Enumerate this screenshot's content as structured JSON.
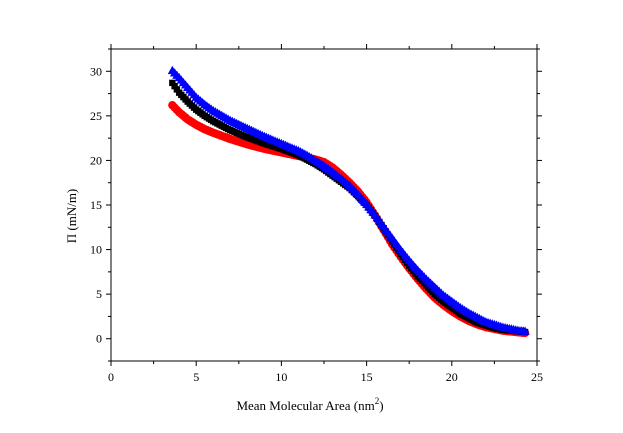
{
  "chart_data": {
    "type": "scatter",
    "xlabel": "Mean Molecular Area (nm",
    "xlabel_sup": "2",
    "xlabel_close": ")",
    "ylabel": "Π (mN/m)",
    "xlim": [
      0,
      25
    ],
    "ylim": [
      -2.5,
      32.5
    ],
    "xticks": [
      0,
      5,
      10,
      15,
      20,
      25
    ],
    "yticks": [
      0,
      5,
      10,
      15,
      20,
      25,
      30
    ],
    "grid": false,
    "series": [
      {
        "color": "#ff0000",
        "marker": "circle",
        "points": [
          [
            3.6,
            26.2
          ],
          [
            4.0,
            25.4
          ],
          [
            4.5,
            24.6
          ],
          [
            5.0,
            24.0
          ],
          [
            5.5,
            23.5
          ],
          [
            6.0,
            23.1
          ],
          [
            7.0,
            22.4
          ],
          [
            8.0,
            21.8
          ],
          [
            9.0,
            21.3
          ],
          [
            10.0,
            20.9
          ],
          [
            11.0,
            20.5
          ],
          [
            11.5,
            20.3
          ],
          [
            12.0,
            20.1
          ],
          [
            12.5,
            19.8
          ],
          [
            13.0,
            19.2
          ],
          [
            13.5,
            18.4
          ],
          [
            14.0,
            17.5
          ],
          [
            14.5,
            16.5
          ],
          [
            15.0,
            15.3
          ],
          [
            15.5,
            13.8
          ],
          [
            16.0,
            12.2
          ],
          [
            16.5,
            10.6
          ],
          [
            17.0,
            9.2
          ],
          [
            17.5,
            7.9
          ],
          [
            18.0,
            6.7
          ],
          [
            18.5,
            5.6
          ],
          [
            19.0,
            4.6
          ],
          [
            19.5,
            3.8
          ],
          [
            20.0,
            3.1
          ],
          [
            20.5,
            2.5
          ],
          [
            21.0,
            2.0
          ],
          [
            21.5,
            1.6
          ],
          [
            22.0,
            1.3
          ],
          [
            22.5,
            1.1
          ],
          [
            23.0,
            0.9
          ],
          [
            23.5,
            0.8
          ],
          [
            24.0,
            0.7
          ],
          [
            24.3,
            0.65
          ]
        ]
      },
      {
        "color": "#000000",
        "marker": "square",
        "points": [
          [
            3.6,
            28.7
          ],
          [
            4.0,
            27.6
          ],
          [
            4.5,
            26.6
          ],
          [
            5.0,
            25.7
          ],
          [
            5.5,
            25.0
          ],
          [
            6.0,
            24.4
          ],
          [
            7.0,
            23.4
          ],
          [
            8.0,
            22.6
          ],
          [
            9.0,
            21.9
          ],
          [
            10.0,
            21.3
          ],
          [
            11.0,
            20.6
          ],
          [
            11.5,
            20.1
          ],
          [
            12.0,
            19.6
          ],
          [
            12.5,
            19.0
          ],
          [
            13.0,
            18.3
          ],
          [
            13.5,
            17.6
          ],
          [
            14.0,
            16.9
          ],
          [
            14.5,
            16.0
          ],
          [
            15.0,
            15.0
          ],
          [
            15.5,
            13.8
          ],
          [
            16.0,
            12.4
          ],
          [
            16.5,
            10.9
          ],
          [
            17.0,
            9.5
          ],
          [
            17.5,
            8.2
          ],
          [
            18.0,
            7.0
          ],
          [
            18.5,
            6.0
          ],
          [
            19.0,
            5.0
          ],
          [
            19.5,
            4.2
          ],
          [
            20.0,
            3.5
          ],
          [
            20.5,
            2.8
          ],
          [
            21.0,
            2.3
          ],
          [
            21.5,
            1.8
          ],
          [
            22.0,
            1.5
          ],
          [
            22.5,
            1.2
          ],
          [
            23.0,
            1.0
          ],
          [
            23.5,
            0.9
          ],
          [
            24.0,
            0.8
          ],
          [
            24.3,
            0.75
          ]
        ]
      },
      {
        "color": "#0000ff",
        "marker": "triangle",
        "points": [
          [
            3.6,
            30.1
          ],
          [
            4.0,
            29.3
          ],
          [
            4.5,
            28.2
          ],
          [
            5.0,
            27.1
          ],
          [
            5.5,
            26.3
          ],
          [
            6.0,
            25.6
          ],
          [
            7.0,
            24.5
          ],
          [
            8.0,
            23.6
          ],
          [
            9.0,
            22.7
          ],
          [
            10.0,
            21.9
          ],
          [
            11.0,
            21.1
          ],
          [
            11.5,
            20.6
          ],
          [
            12.0,
            20.0
          ],
          [
            12.5,
            19.4
          ],
          [
            13.0,
            18.7
          ],
          [
            13.5,
            18.0
          ],
          [
            14.0,
            17.2
          ],
          [
            14.5,
            16.2
          ],
          [
            15.0,
            15.1
          ],
          [
            15.5,
            13.9
          ],
          [
            16.0,
            12.6
          ],
          [
            16.5,
            11.3
          ],
          [
            17.0,
            10.0
          ],
          [
            17.5,
            8.8
          ],
          [
            18.0,
            7.7
          ],
          [
            18.5,
            6.7
          ],
          [
            19.0,
            5.8
          ],
          [
            19.5,
            4.9
          ],
          [
            20.0,
            4.2
          ],
          [
            20.5,
            3.5
          ],
          [
            21.0,
            2.9
          ],
          [
            21.5,
            2.4
          ],
          [
            22.0,
            1.9
          ],
          [
            22.5,
            1.6
          ],
          [
            23.0,
            1.3
          ],
          [
            23.5,
            1.1
          ],
          [
            24.0,
            0.9
          ],
          [
            24.3,
            0.85
          ]
        ]
      }
    ]
  }
}
